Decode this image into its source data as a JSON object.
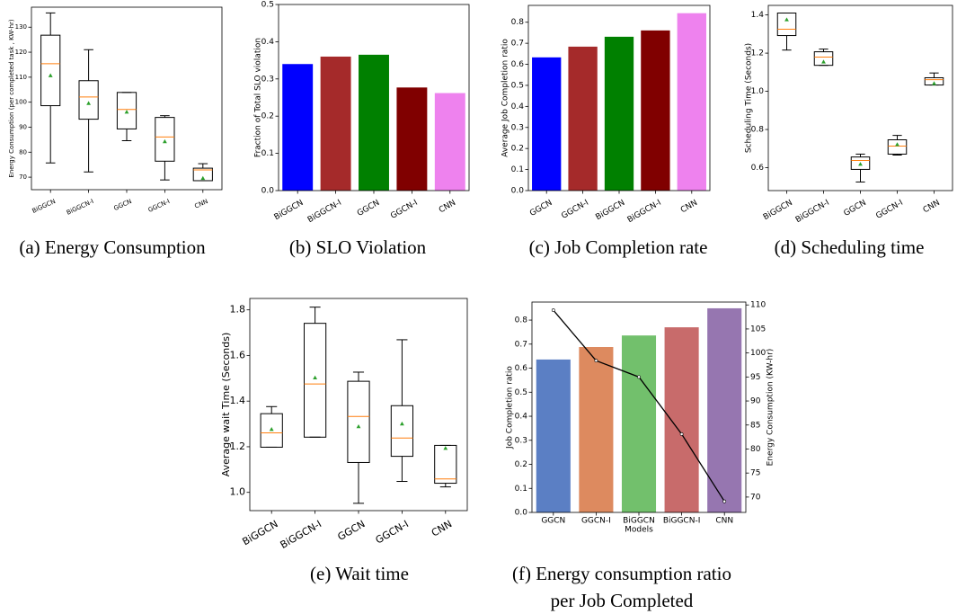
{
  "chart_data": [
    {
      "type": "box",
      "caption": "(a) Energy Consumption",
      "ylabel": "Energy Consumption (per completed task , KW-hr)",
      "categories": [
        "BiGGCN",
        "BiGGCN-I",
        "GGCN",
        "GGCN-I",
        "CNN"
      ],
      "boxes": [
        {
          "whislo": 75.7,
          "q1": 98.6,
          "med": 115.4,
          "q3": 126.8,
          "whishi": 135.7,
          "mean": 110.7
        },
        {
          "whislo": 72.1,
          "q1": 93.2,
          "med": 102.1,
          "q3": 108.6,
          "whishi": 121.0,
          "mean": 99.6
        },
        {
          "whislo": 84.6,
          "q1": 89.3,
          "med": 97.1,
          "q3": 103.9,
          "whishi": 103.9,
          "mean": 96.1
        },
        {
          "whislo": 68.9,
          "q1": 76.4,
          "med": 86.1,
          "q3": 93.9,
          "whishi": 94.6,
          "mean": 84.3
        },
        {
          "whislo": 68.6,
          "q1": 68.6,
          "med": 72.9,
          "q3": 73.6,
          "whishi": 75.4,
          "mean": 69.6
        }
      ],
      "ylim": [
        65,
        138
      ],
      "yticks": [
        70,
        80,
        90,
        100,
        110,
        120,
        130
      ],
      "box_color": "#000000",
      "median_color": "#ff7f0e",
      "mean_color": "#2ca02c"
    },
    {
      "type": "bar",
      "caption": "(b) SLO Violation",
      "ylabel": "Fraction of Total SLO violation",
      "categories": [
        "BiGGCN",
        "BiGGCN-I",
        "GGCN",
        "GGCN-I",
        "CNN"
      ],
      "values": [
        0.34,
        0.36,
        0.365,
        0.277,
        0.262
      ],
      "colors": [
        "#0000ff",
        "#a52a2a",
        "#008000",
        "#800000",
        "#ee82ee"
      ],
      "ylim": [
        0,
        0.5
      ],
      "yticks": [
        {
          "value": 0,
          "label": "0.0"
        },
        0.1,
        0.2,
        0.3,
        0.4,
        0.5
      ]
    },
    {
      "type": "bar",
      "caption": "(c) Job Completion rate",
      "ylabel": "Average Job Completion ratio",
      "categories": [
        "GGCN",
        "GGCN-I",
        "BiGGCN",
        "BiGGCN-I",
        "CNN"
      ],
      "values": [
        0.633,
        0.684,
        0.731,
        0.761,
        0.843
      ],
      "colors": [
        "#0000ff",
        "#a52a2a",
        "#008000",
        "#800000",
        "#ee82ee"
      ],
      "ylim": [
        0,
        0.88
      ],
      "yticks": [
        {
          "value": 0,
          "label": "0.0"
        },
        0.1,
        0.2,
        0.3,
        0.4,
        0.5,
        0.6,
        0.7,
        0.8
      ]
    },
    {
      "type": "box",
      "caption": "(d) Scheduling time",
      "ylabel": "Scheduling Time (Seconds)",
      "categories": [
        "BiGGCN",
        "BiGGCN-I",
        "GGCN",
        "GGCN-I",
        "CNN"
      ],
      "boxes": [
        {
          "whislo": 1.216,
          "q1": 1.292,
          "med": 1.325,
          "q3": 1.41,
          "whishi": 1.41,
          "mean": 1.376
        },
        {
          "whislo": 1.136,
          "q1": 1.136,
          "med": 1.179,
          "q3": 1.207,
          "whishi": 1.221,
          "mean": 1.155
        },
        {
          "whislo": 0.525,
          "q1": 0.591,
          "med": 0.638,
          "q3": 0.656,
          "whishi": 0.671,
          "mean": 0.619
        },
        {
          "whislo": 0.666,
          "q1": 0.671,
          "med": 0.713,
          "q3": 0.746,
          "whishi": 0.769,
          "mean": 0.722
        },
        {
          "whislo": 1.033,
          "q1": 1.033,
          "med": 1.061,
          "q3": 1.071,
          "whishi": 1.096,
          "mean": 1.042
        }
      ],
      "ylim": [
        0.48,
        1.45
      ],
      "yticks": [
        0.6,
        0.8,
        {
          "value": 1,
          "label": "1.0"
        },
        1.2,
        1.4
      ],
      "box_color": "#000000",
      "median_color": "#ff7f0e",
      "mean_color": "#2ca02c"
    },
    {
      "type": "box",
      "caption": "(e) Wait time",
      "ylabel": "Average wait Time (Seconds)",
      "categories": [
        "BiGGCN",
        "BiGGCN-I",
        "GGCN",
        "GGCN-I",
        "CNN"
      ],
      "boxes": [
        {
          "whislo": 1.198,
          "q1": 1.198,
          "med": 1.261,
          "q3": 1.345,
          "whishi": 1.376,
          "mean": 1.277
        },
        {
          "whislo": 1.242,
          "q1": 1.242,
          "med": 1.475,
          "q3": 1.741,
          "whishi": 1.812,
          "mean": 1.503
        },
        {
          "whislo": 0.952,
          "q1": 1.131,
          "med": 1.333,
          "q3": 1.487,
          "whishi": 1.527,
          "mean": 1.289
        },
        {
          "whislo": 1.048,
          "q1": 1.158,
          "med": 1.238,
          "q3": 1.38,
          "whishi": 1.669,
          "mean": 1.301
        },
        {
          "whislo": 1.024,
          "q1": 1.04,
          "med": 1.059,
          "q3": 1.206,
          "whishi": 1.206,
          "mean": 1.194
        }
      ],
      "ylim": [
        0.92,
        1.85
      ],
      "yticks": [
        {
          "value": 1,
          "label": "1.0"
        },
        1.2,
        1.4,
        1.6,
        1.8
      ],
      "box_color": "#000000",
      "median_color": "#ff7f0e",
      "mean_color": "#2ca02c"
    },
    {
      "type": "bar_line",
      "caption": "(f) Energy consumption ratio per Job Completed",
      "xlabel": "Models",
      "ylabel": "Job Completion ratio",
      "y2label": "Energy Consumption (KW-hr)",
      "categories": [
        "GGCN",
        "GGCN-I",
        "BiGGCN",
        "BiGGCN-I",
        "CNN"
      ],
      "series": [
        {
          "values": [
            0.636,
            0.688,
            0.736,
            0.77,
            0.849
          ],
          "colors": [
            "#5b7fc4",
            "#dd8a5f",
            "#72c06c",
            "#c86b6b",
            "#9676b0"
          ]
        },
        {
          "values": [
            108.9,
            98.4,
            95.0,
            83.1,
            69.1
          ],
          "axis": "y2",
          "color": "#000000"
        }
      ],
      "ylim": [
        0,
        0.875
      ],
      "yticks": [
        {
          "value": 0,
          "label": "0.0"
        },
        0.1,
        0.2,
        0.3,
        0.4,
        0.5,
        0.6,
        0.7,
        0.8
      ],
      "y2lim": [
        66.8,
        110.6
      ],
      "y2ticks": [
        70,
        75,
        80,
        85,
        90,
        95,
        100,
        105,
        110
      ]
    }
  ]
}
